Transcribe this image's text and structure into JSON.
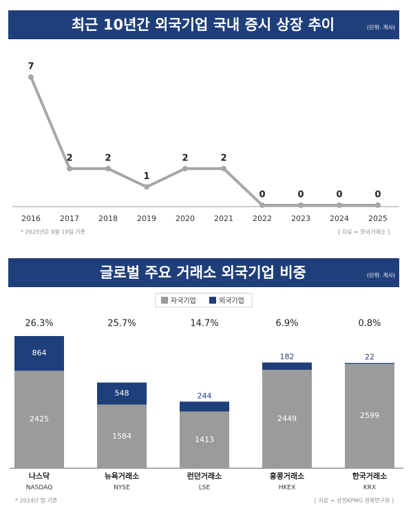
{
  "chart_data": [
    {
      "type": "line",
      "title": "최근 10년간 외국기업 국내 증시 상장 추이",
      "unit": "(단위: 개사)",
      "x": [
        2016,
        2017,
        2018,
        2019,
        2020,
        2021,
        2022,
        2023,
        2024,
        2025
      ],
      "values": [
        7,
        2,
        2,
        1,
        2,
        2,
        0,
        0,
        0,
        0
      ],
      "color": "#a6a6a6",
      "note": "* 2025년은 9월 19일 기준",
      "source": "[ 자료 = 한국거래소 ]"
    },
    {
      "type": "stacked_bar",
      "title": "글로벌 주요 거래소 외국기업 비중",
      "unit": "(단위: 개사)",
      "categories": [
        "나스닥",
        "뉴욕거래소",
        "런던거래소",
        "홍콩거래소",
        "한국거래소"
      ],
      "category_subtitles": [
        "NASDAQ",
        "NYSE",
        "LSE",
        "HKEX",
        "KRX"
      ],
      "series": [
        {
          "name": "자국기업",
          "color": "#9b9b9b",
          "values": [
            2425,
            1584,
            1413,
            2449,
            2599
          ]
        },
        {
          "name": "외국기업",
          "color": "#1f3f7a",
          "values": [
            864,
            548,
            244,
            182,
            22
          ]
        }
      ],
      "shares": [
        26.3,
        25.7,
        14.7,
        6.9,
        0.8
      ],
      "share_labels": [
        "26.3%",
        "25.7%",
        "14.7%",
        "6.9%",
        "0.8%"
      ],
      "note": "* 2024년 말 기준",
      "source": "[ 자료 = 삼정KPMG 경제연구원 ]"
    }
  ]
}
